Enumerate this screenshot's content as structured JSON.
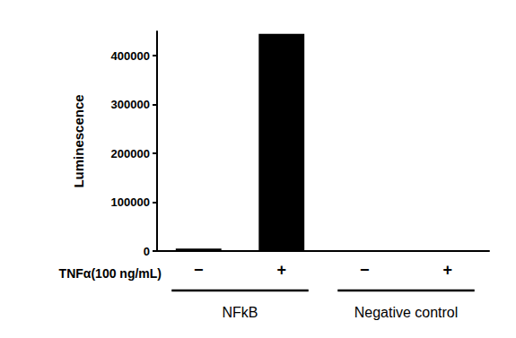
{
  "chart_data": {
    "type": "bar",
    "y_label": "Luminescence",
    "x_row_label": "TNFα(100 ng/mL)",
    "categories": [
      "−",
      "+",
      "−",
      "+"
    ],
    "groups": [
      {
        "label": "NFkB",
        "count": 2
      },
      {
        "label": "Negative control",
        "count": 2
      }
    ],
    "values": [
      5000,
      445000,
      0,
      0
    ],
    "color": "#000000",
    "ylim": [
      0,
      450000
    ],
    "yticks": [
      0,
      100000,
      200000,
      300000,
      400000
    ],
    "grid": false
  }
}
